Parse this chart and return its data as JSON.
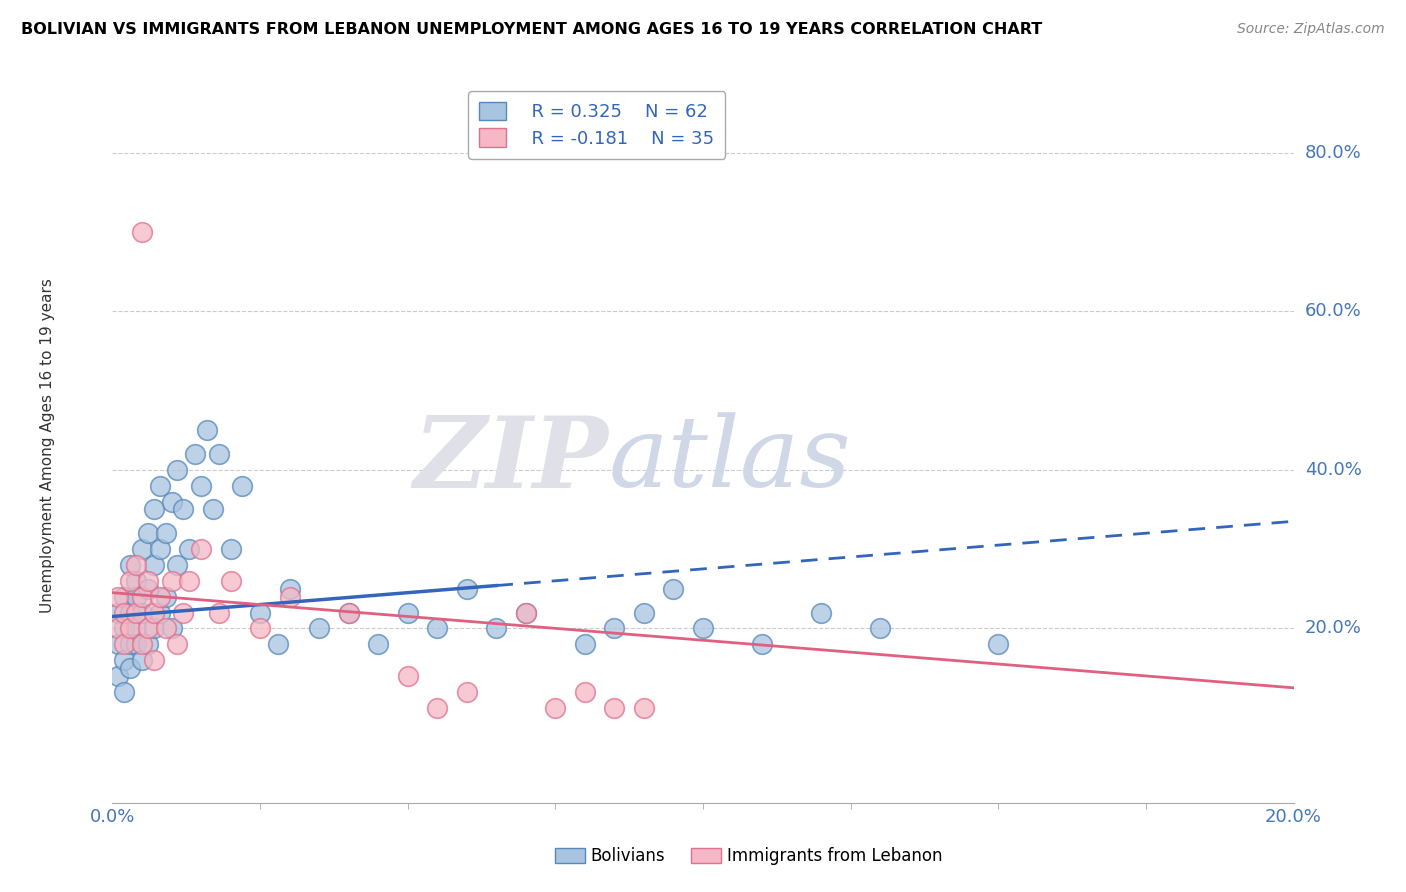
{
  "title": "BOLIVIAN VS IMMIGRANTS FROM LEBANON UNEMPLOYMENT AMONG AGES 16 TO 19 YEARS CORRELATION CHART",
  "source": "Source: ZipAtlas.com",
  "ylabel": "Unemployment Among Ages 16 to 19 years",
  "legend_blue_r": "R = 0.325",
  "legend_blue_n": "N = 62",
  "legend_pink_r": "R = -0.181",
  "legend_pink_n": "N = 35",
  "blue_color": "#a8c4e0",
  "pink_color": "#f5b8c4",
  "blue_edge_color": "#5588bb",
  "pink_edge_color": "#e07090",
  "blue_line_color": "#3366bb",
  "pink_line_color": "#e06080",
  "watermark_zip": "ZIP",
  "watermark_atlas": "atlas",
  "blue_scatter_x": [
    0.001,
    0.001,
    0.001,
    0.002,
    0.002,
    0.002,
    0.002,
    0.003,
    0.003,
    0.003,
    0.003,
    0.004,
    0.004,
    0.004,
    0.004,
    0.005,
    0.005,
    0.005,
    0.006,
    0.006,
    0.006,
    0.007,
    0.007,
    0.007,
    0.008,
    0.008,
    0.008,
    0.009,
    0.009,
    0.01,
    0.01,
    0.011,
    0.011,
    0.012,
    0.013,
    0.014,
    0.015,
    0.016,
    0.017,
    0.018,
    0.02,
    0.022,
    0.025,
    0.028,
    0.03,
    0.035,
    0.04,
    0.045,
    0.05,
    0.055,
    0.06,
    0.065,
    0.07,
    0.08,
    0.085,
    0.09,
    0.095,
    0.1,
    0.11,
    0.12,
    0.13,
    0.15
  ],
  "blue_scatter_y": [
    0.18,
    0.22,
    0.14,
    0.2,
    0.16,
    0.24,
    0.12,
    0.18,
    0.22,
    0.28,
    0.15,
    0.2,
    0.26,
    0.18,
    0.24,
    0.22,
    0.16,
    0.3,
    0.18,
    0.25,
    0.32,
    0.2,
    0.28,
    0.35,
    0.22,
    0.3,
    0.38,
    0.24,
    0.32,
    0.2,
    0.36,
    0.28,
    0.4,
    0.35,
    0.3,
    0.42,
    0.38,
    0.45,
    0.35,
    0.42,
    0.3,
    0.38,
    0.22,
    0.18,
    0.25,
    0.2,
    0.22,
    0.18,
    0.22,
    0.2,
    0.25,
    0.2,
    0.22,
    0.18,
    0.2,
    0.22,
    0.25,
    0.2,
    0.18,
    0.22,
    0.2,
    0.18
  ],
  "pink_scatter_x": [
    0.001,
    0.001,
    0.002,
    0.002,
    0.003,
    0.003,
    0.004,
    0.004,
    0.005,
    0.005,
    0.006,
    0.006,
    0.007,
    0.007,
    0.008,
    0.009,
    0.01,
    0.011,
    0.012,
    0.013,
    0.015,
    0.018,
    0.02,
    0.025,
    0.03,
    0.04,
    0.05,
    0.055,
    0.06,
    0.07,
    0.075,
    0.08,
    0.085,
    0.09,
    0.005
  ],
  "pink_scatter_y": [
    0.2,
    0.24,
    0.22,
    0.18,
    0.26,
    0.2,
    0.22,
    0.28,
    0.18,
    0.24,
    0.2,
    0.26,
    0.22,
    0.16,
    0.24,
    0.2,
    0.26,
    0.18,
    0.22,
    0.26,
    0.3,
    0.22,
    0.26,
    0.2,
    0.24,
    0.22,
    0.14,
    0.1,
    0.12,
    0.22,
    0.1,
    0.12,
    0.1,
    0.1,
    0.7
  ],
  "xlim": [
    0.0,
    0.2
  ],
  "ylim": [
    -0.02,
    0.88
  ],
  "blue_line_x": [
    0.0,
    0.065,
    0.2
  ],
  "blue_line_y_solid_end": 0.065,
  "pink_line_x0": 0.0,
  "pink_line_x1": 0.2,
  "blue_trend_x0": 0.0,
  "blue_trend_x1": 0.2,
  "blue_trend_y0": 0.215,
  "blue_trend_y1": 0.335,
  "pink_trend_y0": 0.245,
  "pink_trend_y1": 0.125,
  "ytick_positions": [
    0.2,
    0.4,
    0.6,
    0.8
  ],
  "ytick_labels": [
    "20.0%",
    "40.0%",
    "60.0%",
    "80.0%"
  ]
}
